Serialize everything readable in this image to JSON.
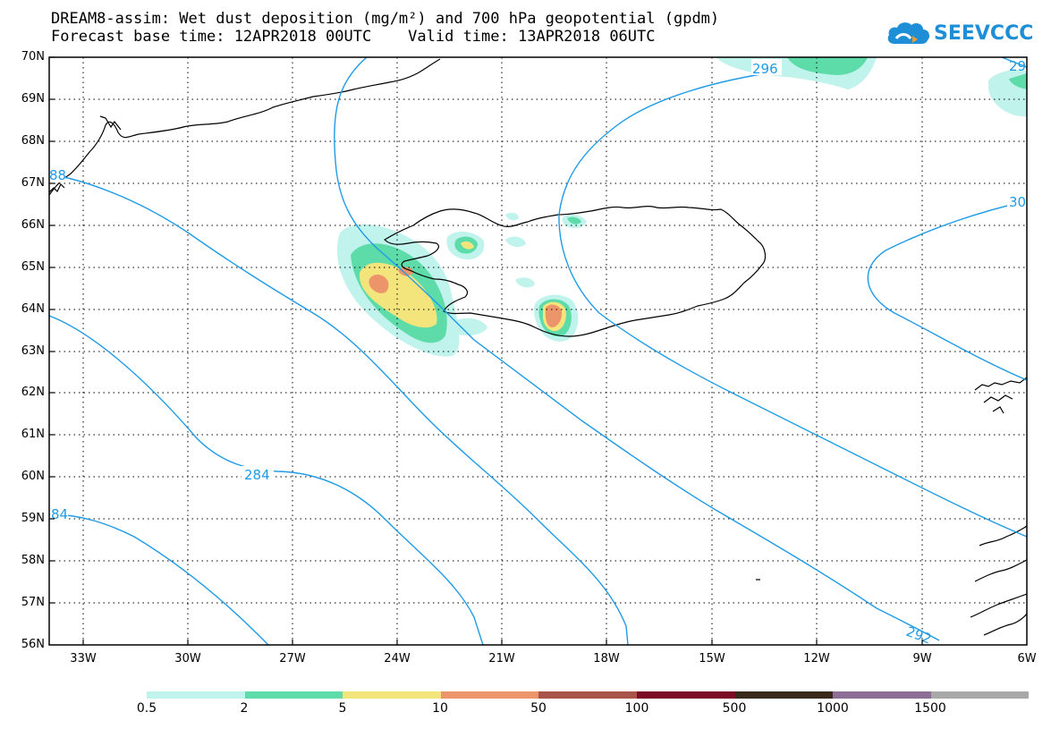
{
  "title": {
    "line1": "DREAM8-assim: Wet dust deposition (mg/m²) and 700 hPa geopotential (gpdm)",
    "line2": "Forecast base time: 12APR2018 00UTC    Valid time: 13APR2018 06UTC"
  },
  "logo": {
    "text": "SEEVCCC",
    "icon": "cloud-icon",
    "color": "#1e8fd6"
  },
  "map": {
    "lat_labels": [
      "70N",
      "69N",
      "68N",
      "67N",
      "66N",
      "65N",
      "64N",
      "63N",
      "62N",
      "61N",
      "60N",
      "59N",
      "58N",
      "57N",
      "56N"
    ],
    "lon_labels": [
      "33W",
      "30W",
      "27W",
      "24W",
      "21W",
      "18W",
      "15W",
      "12W",
      "9W",
      "6W"
    ],
    "contour_color": "#1f9be6",
    "contour_labels": [
      "296",
      "29",
      "30",
      "284",
      "84",
      "292",
      "88"
    ]
  },
  "legend": {
    "labels": [
      "0.5",
      "2",
      "5",
      "10",
      "50",
      "100",
      "500",
      "1000",
      "1500"
    ],
    "colors": [
      "#bff3ec",
      "#5ddcaa",
      "#f3e47c",
      "#ec946a",
      "#a9544b",
      "#7a0c25",
      "#3a2a1b",
      "#8c6e96",
      "#a8a8a8"
    ]
  }
}
